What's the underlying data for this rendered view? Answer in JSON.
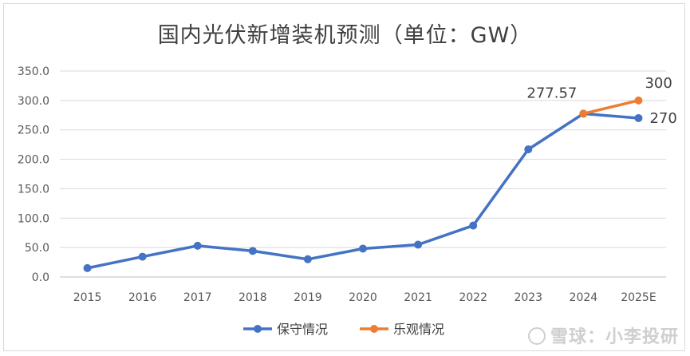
{
  "chart_data": {
    "type": "line",
    "title": "国内光伏新增装机预测（单位：GW）",
    "categories": [
      "2015",
      "2016",
      "2017",
      "2018",
      "2019",
      "2020",
      "2021",
      "2022",
      "2023",
      "2024",
      "2025E"
    ],
    "ylim": [
      0,
      350
    ],
    "yticks": [
      "0.0",
      "50.0",
      "100.0",
      "150.0",
      "200.0",
      "250.0",
      "300.0",
      "350.0"
    ],
    "grid": true,
    "legend_position": "bottom",
    "series": [
      {
        "name": "保守情况",
        "color": "#4472c4",
        "values": [
          15.1,
          34.5,
          53.1,
          44.3,
          30.1,
          48.2,
          54.9,
          87.4,
          216.9,
          277.57,
          270
        ]
      },
      {
        "name": "乐观情况",
        "color": "#ed7d31",
        "values": [
          null,
          null,
          null,
          null,
          null,
          null,
          null,
          null,
          null,
          277.57,
          300
        ]
      }
    ],
    "data_labels": [
      {
        "series": 0,
        "index": 9,
        "text": "277.57"
      },
      {
        "series": 0,
        "index": 10,
        "text": "270"
      },
      {
        "series": 1,
        "index": 10,
        "text": "300"
      }
    ]
  },
  "watermark": "雪球：小李投研"
}
